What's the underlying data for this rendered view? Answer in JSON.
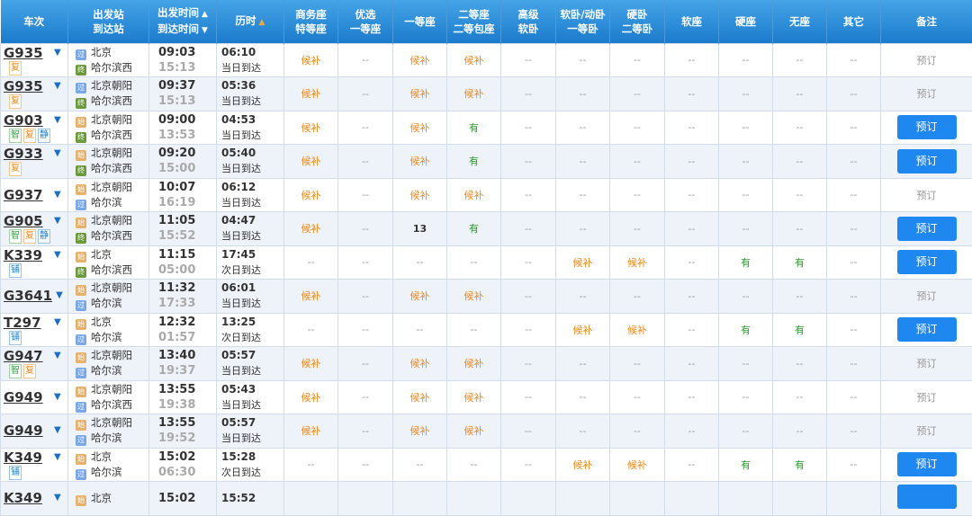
{
  "header": {
    "train": "车次",
    "station_top": "出发站",
    "station_bottom": "到达站",
    "time_top": "出发时间",
    "time_bottom": "到达时间",
    "duration": "历时",
    "seats": [
      [
        "商务座",
        "特等座"
      ],
      [
        "优选",
        "一等座"
      ],
      [
        "一等座",
        ""
      ],
      [
        "二等座",
        "二等包座"
      ],
      [
        "高级",
        "软卧"
      ],
      [
        "软卧/动卧",
        "一等卧"
      ],
      [
        "硬卧",
        "二等卧"
      ],
      [
        "软座",
        ""
      ],
      [
        "硬座",
        ""
      ],
      [
        "无座",
        ""
      ],
      [
        "其它",
        ""
      ]
    ],
    "remark": "备注"
  },
  "colors": {
    "header": "#1b7bcc",
    "wait": "#f08a1c",
    "has": "#2a9c2a",
    "button": "#1e88f0"
  },
  "station_icons": {
    "start": "始",
    "pass": "过",
    "end": "终"
  },
  "rows": [
    {
      "train": "G935",
      "tags": [
        "复"
      ],
      "from": {
        "icon": "pass",
        "name": "北京"
      },
      "to": {
        "icon": "end",
        "name": "哈尔滨西"
      },
      "depart": "09:03",
      "arrive": "15:13",
      "duration": "06:10",
      "day": "当日到达",
      "seats": [
        "候补",
        "--",
        "候补",
        "候补",
        "--",
        "--",
        "--",
        "--",
        "--",
        "--",
        "--"
      ],
      "remark": "预订",
      "bookable": false
    },
    {
      "train": "G935",
      "tags": [
        "复"
      ],
      "from": {
        "icon": "pass",
        "name": "北京朝阳"
      },
      "to": {
        "icon": "end",
        "name": "哈尔滨西"
      },
      "depart": "09:37",
      "arrive": "15:13",
      "duration": "05:36",
      "day": "当日到达",
      "seats": [
        "候补",
        "--",
        "候补",
        "候补",
        "--",
        "--",
        "--",
        "--",
        "--",
        "--",
        "--"
      ],
      "remark": "预订",
      "bookable": false
    },
    {
      "train": "G903",
      "tags": [
        "智",
        "复",
        "静"
      ],
      "from": {
        "icon": "start",
        "name": "北京朝阳"
      },
      "to": {
        "icon": "end",
        "name": "哈尔滨西"
      },
      "depart": "09:00",
      "arrive": "13:53",
      "duration": "04:53",
      "day": "当日到达",
      "seats": [
        "候补",
        "--",
        "候补",
        "有",
        "--",
        "--",
        "--",
        "--",
        "--",
        "--",
        "--"
      ],
      "remark": "预订",
      "bookable": true
    },
    {
      "train": "G933",
      "tags": [
        "复"
      ],
      "from": {
        "icon": "start",
        "name": "北京朝阳"
      },
      "to": {
        "icon": "end",
        "name": "哈尔滨西"
      },
      "depart": "09:20",
      "arrive": "15:00",
      "duration": "05:40",
      "day": "当日到达",
      "seats": [
        "候补",
        "--",
        "候补",
        "有",
        "--",
        "--",
        "--",
        "--",
        "--",
        "--",
        "--"
      ],
      "remark": "预订",
      "bookable": true
    },
    {
      "train": "G937",
      "tags": [],
      "from": {
        "icon": "start",
        "name": "北京朝阳"
      },
      "to": {
        "icon": "pass",
        "name": "哈尔滨"
      },
      "depart": "10:07",
      "arrive": "16:19",
      "duration": "06:12",
      "day": "当日到达",
      "seats": [
        "候补",
        "--",
        "候补",
        "候补",
        "--",
        "--",
        "--",
        "--",
        "--",
        "--",
        "--"
      ],
      "remark": "预订",
      "bookable": false
    },
    {
      "train": "G905",
      "tags": [
        "智",
        "复",
        "静"
      ],
      "from": {
        "icon": "start",
        "name": "北京朝阳"
      },
      "to": {
        "icon": "end",
        "name": "哈尔滨西"
      },
      "depart": "11:05",
      "arrive": "15:52",
      "duration": "04:47",
      "day": "当日到达",
      "seats": [
        "候补",
        "--",
        "13",
        "有",
        "--",
        "--",
        "--",
        "--",
        "--",
        "--",
        "--"
      ],
      "remark": "预订",
      "bookable": true
    },
    {
      "train": "K339",
      "tags": [
        "铺"
      ],
      "from": {
        "icon": "start",
        "name": "北京"
      },
      "to": {
        "icon": "end",
        "name": "哈尔滨西"
      },
      "depart": "11:15",
      "arrive": "05:00",
      "duration": "17:45",
      "day": "次日到达",
      "seats": [
        "--",
        "--",
        "--",
        "--",
        "--",
        "候补",
        "候补",
        "--",
        "有",
        "有",
        "--"
      ],
      "remark": "预订",
      "bookable": true
    },
    {
      "train": "G3641",
      "tags": [],
      "from": {
        "icon": "start",
        "name": "北京朝阳"
      },
      "to": {
        "icon": "pass",
        "name": "哈尔滨"
      },
      "depart": "11:32",
      "arrive": "17:33",
      "duration": "06:01",
      "day": "当日到达",
      "seats": [
        "候补",
        "--",
        "候补",
        "候补",
        "--",
        "--",
        "--",
        "--",
        "--",
        "--",
        "--"
      ],
      "remark": "预订",
      "bookable": false
    },
    {
      "train": "T297",
      "tags": [
        "铺"
      ],
      "from": {
        "icon": "start",
        "name": "北京"
      },
      "to": {
        "icon": "pass",
        "name": "哈尔滨"
      },
      "depart": "12:32",
      "arrive": "01:57",
      "duration": "13:25",
      "day": "次日到达",
      "seats": [
        "--",
        "--",
        "--",
        "--",
        "--",
        "候补",
        "候补",
        "--",
        "有",
        "有",
        "--"
      ],
      "remark": "预订",
      "bookable": true
    },
    {
      "train": "G947",
      "tags": [
        "智",
        "复"
      ],
      "from": {
        "icon": "start",
        "name": "北京朝阳"
      },
      "to": {
        "icon": "pass",
        "name": "哈尔滨"
      },
      "depart": "13:40",
      "arrive": "19:37",
      "duration": "05:57",
      "day": "当日到达",
      "seats": [
        "候补",
        "--",
        "候补",
        "候补",
        "--",
        "--",
        "--",
        "--",
        "--",
        "--",
        "--"
      ],
      "remark": "预订",
      "bookable": false
    },
    {
      "train": "G949",
      "tags": [],
      "from": {
        "icon": "start",
        "name": "北京朝阳"
      },
      "to": {
        "icon": "pass",
        "name": "哈尔滨西"
      },
      "depart": "13:55",
      "arrive": "19:38",
      "duration": "05:43",
      "day": "当日到达",
      "seats": [
        "候补",
        "--",
        "候补",
        "候补",
        "--",
        "--",
        "--",
        "--",
        "--",
        "--",
        "--"
      ],
      "remark": "预订",
      "bookable": false
    },
    {
      "train": "G949",
      "tags": [],
      "from": {
        "icon": "start",
        "name": "北京朝阳"
      },
      "to": {
        "icon": "pass",
        "name": "哈尔滨"
      },
      "depart": "13:55",
      "arrive": "19:52",
      "duration": "05:57",
      "day": "当日到达",
      "seats": [
        "候补",
        "--",
        "候补",
        "候补",
        "--",
        "--",
        "--",
        "--",
        "--",
        "--",
        "--"
      ],
      "remark": "预订",
      "bookable": false
    },
    {
      "train": "K349",
      "tags": [
        "铺"
      ],
      "from": {
        "icon": "start",
        "name": "北京"
      },
      "to": {
        "icon": "pass",
        "name": "哈尔滨"
      },
      "depart": "15:02",
      "arrive": "06:30",
      "duration": "15:28",
      "day": "次日到达",
      "seats": [
        "--",
        "--",
        "--",
        "--",
        "--",
        "候补",
        "候补",
        "--",
        "有",
        "有",
        "--"
      ],
      "remark": "预订",
      "bookable": true
    },
    {
      "train": "K349",
      "tags": [],
      "from": {
        "icon": "start",
        "name": "北京"
      },
      "to": null,
      "depart": "15:02",
      "arrive": "",
      "duration": "15:52",
      "day": "",
      "seats": [
        "",
        "",
        "",
        "",
        "",
        "",
        "",
        "",
        "",
        "",
        ""
      ],
      "remark": "",
      "bookable": true
    }
  ]
}
